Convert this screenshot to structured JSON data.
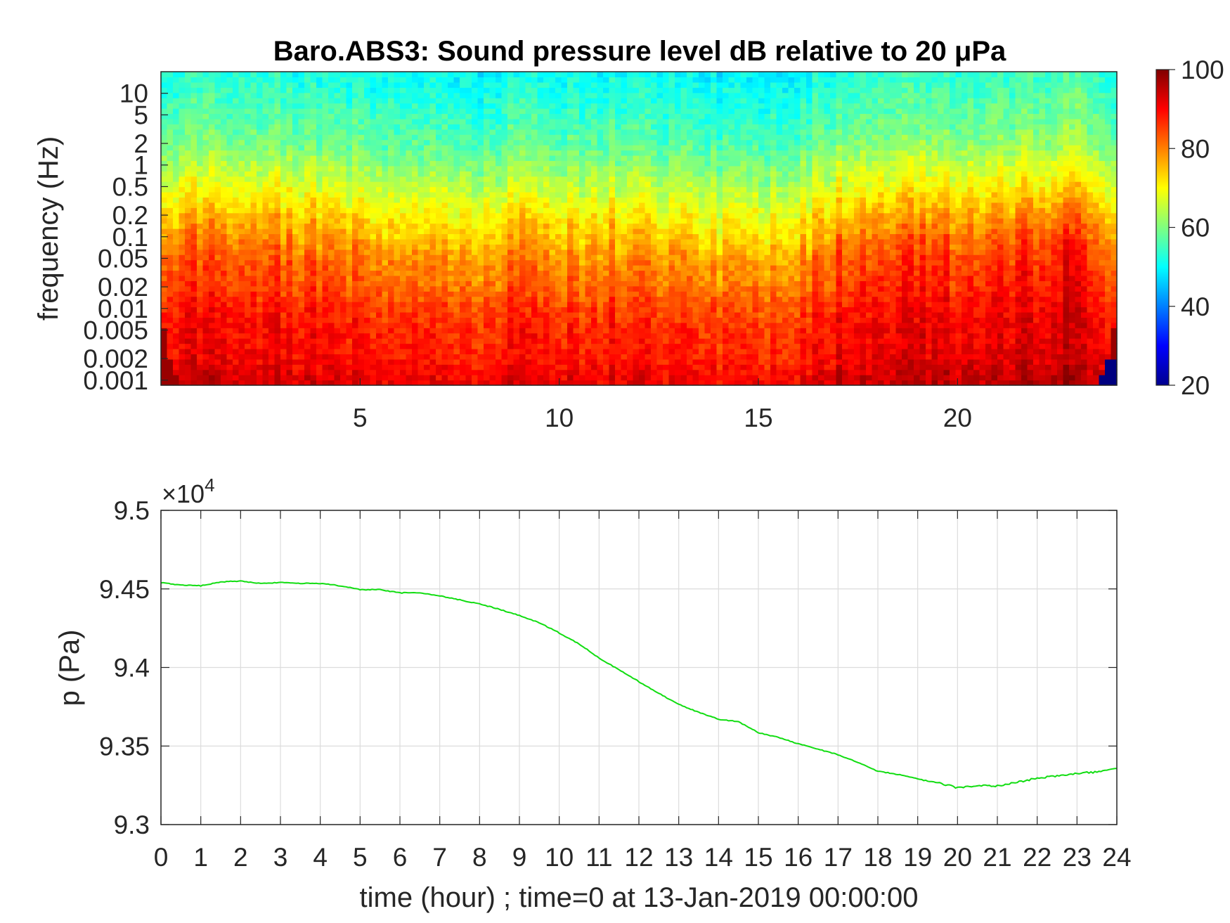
{
  "chart_data": [
    {
      "type": "heatmap",
      "title": "Baro.ABS3: Sound pressure level dB relative to 20 μPa",
      "xlabel": "",
      "ylabel": "frequency (Hz)",
      "x_ticks": [
        "5",
        "10",
        "15",
        "20"
      ],
      "x_tick_values": [
        5,
        10,
        15,
        20
      ],
      "xlim": [
        0,
        24
      ],
      "y_scale": "log",
      "y_ticks": [
        "10",
        "5",
        "2",
        "1",
        "0.5",
        "0.2",
        "0.1",
        "0.05",
        "0.02",
        "0.01",
        "0.005",
        "0.002",
        "0.001"
      ],
      "y_tick_values": [
        10,
        5,
        2,
        1,
        0.5,
        0.2,
        0.1,
        0.05,
        0.02,
        0.01,
        0.005,
        0.002,
        0.001
      ],
      "ylim": [
        0.00085,
        20
      ],
      "colormap": "jet",
      "colorbar": {
        "ticks": [
          "100",
          "80",
          "60",
          "40",
          "20"
        ],
        "values": [
          100,
          80,
          60,
          40,
          20
        ],
        "range": [
          20,
          100
        ]
      },
      "level_profile_freq_hz": [
        0.001,
        0.002,
        0.005,
        0.01,
        0.02,
        0.05,
        0.1,
        0.2,
        0.5,
        1,
        2,
        5,
        10,
        20
      ],
      "level_profile_db": [
        92,
        89,
        88,
        86,
        83,
        80,
        76,
        72,
        66,
        62,
        58,
        55,
        53,
        51
      ],
      "activity_time_hour": [
        0,
        2,
        4,
        6,
        8,
        9,
        10,
        11,
        12,
        13,
        14,
        15,
        16,
        17,
        18,
        19,
        20,
        21,
        22,
        22.7,
        23.5,
        24
      ],
      "activity_db_offset": [
        4,
        3,
        2,
        0,
        -3,
        0,
        -2,
        0,
        0,
        -1,
        -4,
        -5,
        -2,
        4,
        5,
        6,
        6,
        5,
        8,
        10,
        6,
        4
      ],
      "grid": false
    },
    {
      "type": "line",
      "title": "",
      "xlabel": "time (hour) ; time=0 at 13-Jan-2019 00:00:00",
      "ylabel": "p (Pa)",
      "y_exponent_label": "×10",
      "y_exponent": "4",
      "xlim": [
        0,
        24
      ],
      "ylim": [
        9.3,
        9.5
      ],
      "x_ticks": [
        "0",
        "1",
        "2",
        "3",
        "4",
        "5",
        "6",
        "7",
        "8",
        "9",
        "10",
        "11",
        "12",
        "13",
        "14",
        "15",
        "16",
        "17",
        "18",
        "19",
        "20",
        "21",
        "22",
        "23",
        "24"
      ],
      "y_ticks": [
        "9.5",
        "9.45",
        "9.4",
        "9.35",
        "9.3"
      ],
      "y_tick_values": [
        9.5,
        9.45,
        9.4,
        9.35,
        9.3
      ],
      "grid": true,
      "series": [
        {
          "color": "#11dd11",
          "x": [
            0,
            0.5,
            1,
            1.5,
            2,
            2.5,
            3,
            3.5,
            4,
            4.5,
            5,
            5.5,
            6,
            6.5,
            7,
            7.5,
            8,
            8.5,
            9,
            9.5,
            10,
            10.5,
            11,
            11.5,
            12,
            12.5,
            13,
            13.5,
            14,
            14.5,
            15,
            15.5,
            16,
            16.5,
            17,
            17.5,
            18,
            18.5,
            19,
            19.5,
            20,
            20.5,
            21,
            21.5,
            22,
            22.5,
            23,
            23.5,
            24
          ],
          "y": [
            9.454,
            9.4525,
            9.452,
            9.4545,
            9.455,
            9.4535,
            9.454,
            9.4535,
            9.4535,
            9.452,
            9.4495,
            9.4495,
            9.4475,
            9.4475,
            9.4455,
            9.443,
            9.4405,
            9.437,
            9.433,
            9.4285,
            9.422,
            9.415,
            9.406,
            9.3985,
            9.391,
            9.3835,
            9.3765,
            9.3715,
            9.367,
            9.3655,
            9.3585,
            9.3555,
            9.3515,
            9.348,
            9.3445,
            9.3395,
            9.334,
            9.332,
            9.329,
            9.3265,
            9.3235,
            9.325,
            9.3245,
            9.327,
            9.3295,
            9.331,
            9.3325,
            9.3335,
            9.336
          ]
        }
      ]
    }
  ]
}
